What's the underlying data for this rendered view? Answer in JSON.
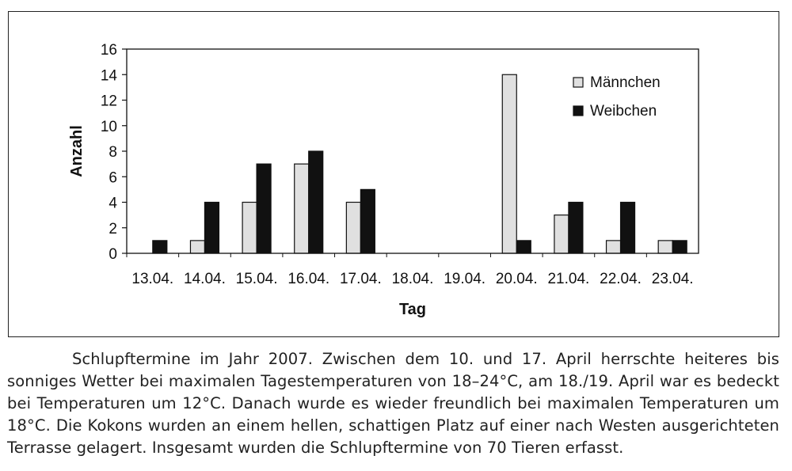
{
  "chart_data": {
    "type": "bar",
    "xlabel": "Tag",
    "ylabel": "Anzahl",
    "categories": [
      "13.04.",
      "14.04.",
      "15.04.",
      "16.04.",
      "17.04.",
      "18.04.",
      "19.04.",
      "20.04.",
      "21.04.",
      "22.04.",
      "23.04."
    ],
    "series": [
      {
        "name": "Männchen",
        "values": [
          0,
          1,
          4,
          7,
          4,
          0,
          0,
          14,
          3,
          1,
          1
        ],
        "color": "#e0e0e0"
      },
      {
        "name": "Weibchen",
        "values": [
          1,
          4,
          7,
          8,
          5,
          0,
          0,
          1,
          4,
          4,
          1
        ],
        "color": "#111111"
      }
    ],
    "ylim": [
      0,
      16
    ],
    "yticks": [
      "0",
      "2",
      "4",
      "6",
      "8",
      "10",
      "12",
      "14",
      "16"
    ],
    "grid": false,
    "legend_position": "top-right"
  },
  "caption": "Schlupftermine im Jahr 2007. Zwischen dem 10. und 17. April herrschte heiteres bis sonniges Wetter bei maximalen Tagestemperaturen von 18–24°C, am 18./19. April war es bedeckt bei Temperaturen um 12°C. Danach wurde es wieder freundlich bei maximalen Temperaturen um 18°C. Die Kokons wurden an einem hellen, schattigen Platz auf einer nach Westen ausgerichteten Terrasse gelagert. Insgesamt wurden die Schlupftermine von 70 Tieren erfasst."
}
